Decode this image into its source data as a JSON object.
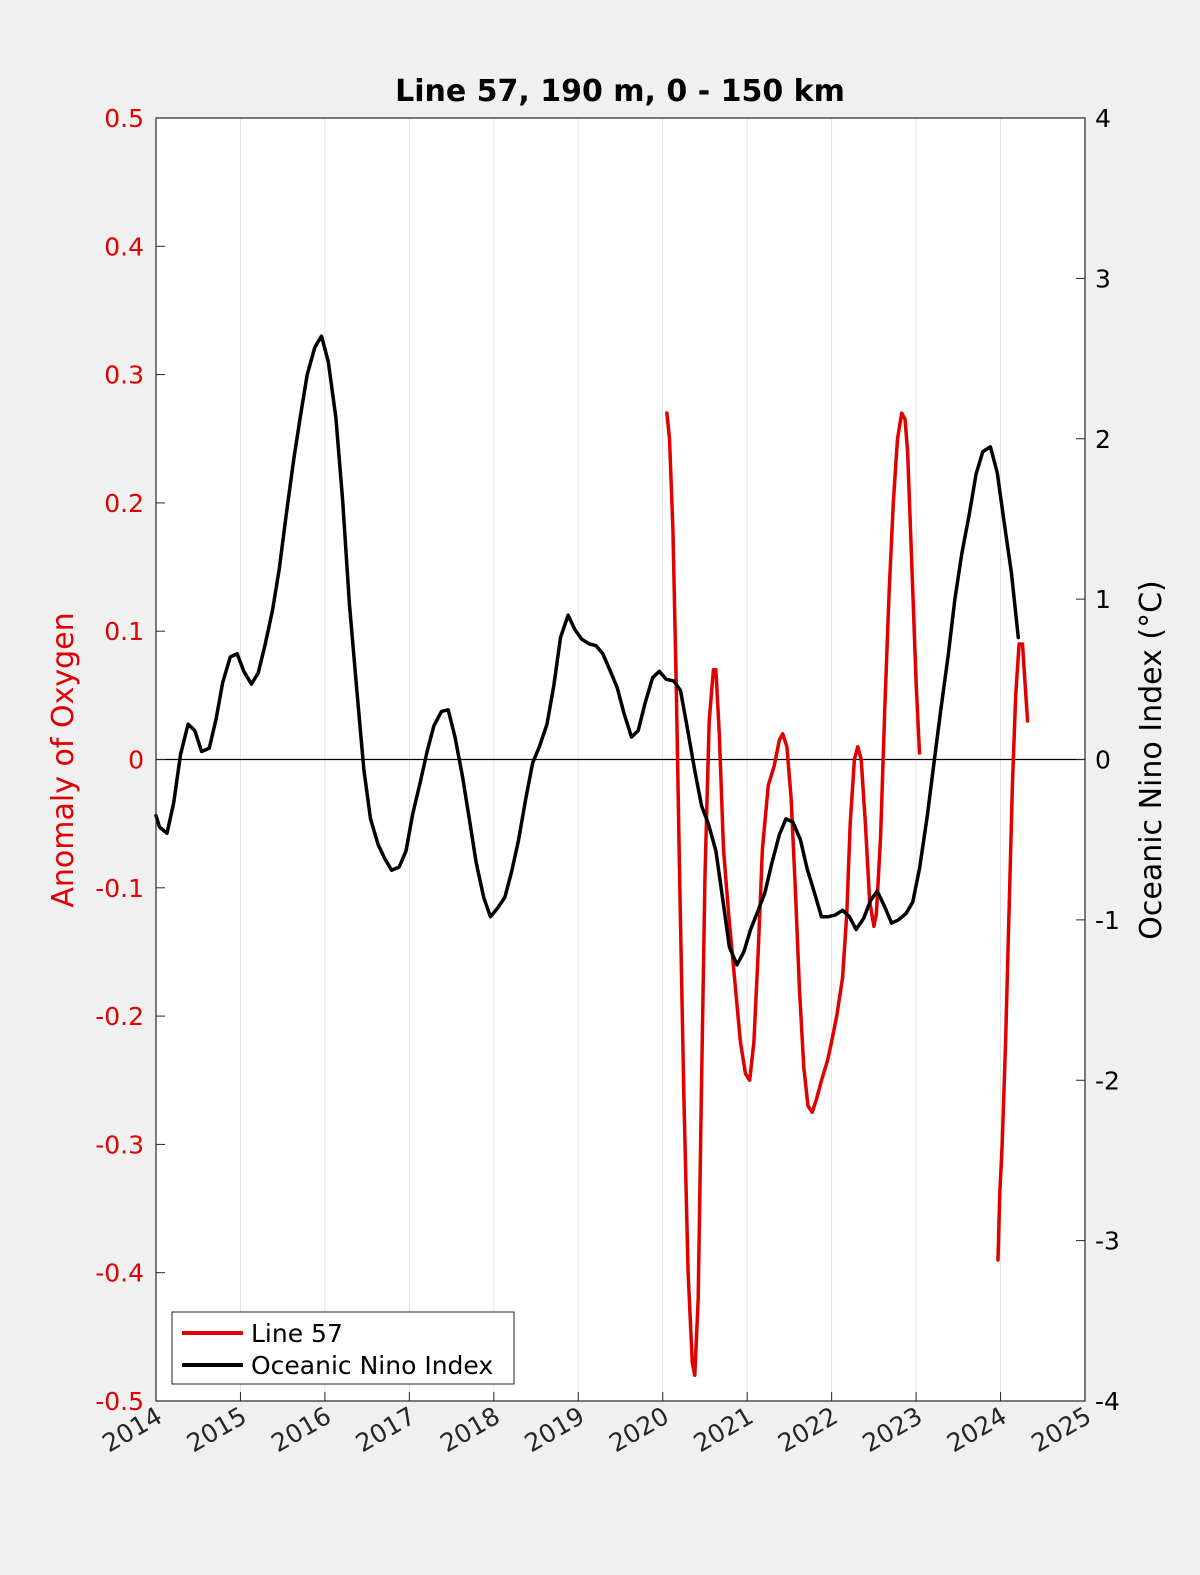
{
  "chart_data": {
    "type": "line",
    "title": "Line 57, 190 m, 0 - 150 km",
    "xlabel": "",
    "x_ticks": [
      "2014",
      "2015",
      "2016",
      "2017",
      "2018",
      "2019",
      "2020",
      "2021",
      "2022",
      "2023",
      "2024",
      "2025"
    ],
    "xlim": [
      2014,
      2025
    ],
    "y_left": {
      "label": "Anomaly of Oxygen",
      "ylim": [
        -0.5,
        0.5
      ],
      "ticks": [
        "0.5",
        "0.4",
        "0.3",
        "0.2",
        "0.1",
        "0",
        "-0.1",
        "-0.2",
        "-0.3",
        "-0.4",
        "-0.5"
      ],
      "color": "#e00000"
    },
    "y_right": {
      "label": "Oceanic Nino Index (°C)",
      "ylim": [
        -4,
        4
      ],
      "ticks": [
        "4",
        "3",
        "2",
        "1",
        "0",
        "-1",
        "-2",
        "-3",
        "-4"
      ],
      "color": "#000000"
    },
    "grid": "vertical",
    "zero_line": true,
    "legend_position": "bottom-left",
    "series": [
      {
        "name": "Line 57",
        "axis": "left",
        "color": "#e00000",
        "segments": [
          [
            [
              2020.05,
              0.27
            ],
            [
              2020.08,
              0.25
            ],
            [
              2020.12,
              0.18
            ],
            [
              2020.16,
              0.06
            ],
            [
              2020.2,
              -0.09
            ],
            [
              2020.25,
              -0.26
            ],
            [
              2020.3,
              -0.4
            ],
            [
              2020.35,
              -0.47
            ],
            [
              2020.38,
              -0.48
            ],
            [
              2020.42,
              -0.42
            ],
            [
              2020.46,
              -0.25
            ],
            [
              2020.5,
              -0.09
            ],
            [
              2020.55,
              0.03
            ],
            [
              2020.6,
              0.07
            ],
            [
              2020.63,
              0.07
            ],
            [
              2020.67,
              0.02
            ],
            [
              2020.72,
              -0.07
            ],
            [
              2020.78,
              -0.12
            ],
            [
              2020.85,
              -0.17
            ],
            [
              2020.92,
              -0.22
            ],
            [
              2020.98,
              -0.245
            ],
            [
              2021.03,
              -0.25
            ],
            [
              2021.08,
              -0.22
            ],
            [
              2021.13,
              -0.15
            ],
            [
              2021.18,
              -0.07
            ],
            [
              2021.25,
              -0.02
            ],
            [
              2021.32,
              -0.005
            ],
            [
              2021.38,
              0.015
            ],
            [
              2021.42,
              0.02
            ],
            [
              2021.47,
              0.01
            ],
            [
              2021.52,
              -0.03
            ],
            [
              2021.57,
              -0.1
            ],
            [
              2021.62,
              -0.18
            ],
            [
              2021.67,
              -0.24
            ],
            [
              2021.72,
              -0.27
            ],
            [
              2021.77,
              -0.275
            ],
            [
              2021.82,
              -0.265
            ],
            [
              2021.88,
              -0.25
            ],
            [
              2021.95,
              -0.235
            ],
            [
              2022.0,
              -0.22
            ],
            [
              2022.06,
              -0.2
            ],
            [
              2022.13,
              -0.17
            ],
            [
              2022.18,
              -0.12
            ],
            [
              2022.22,
              -0.05
            ],
            [
              2022.27,
              0.0
            ],
            [
              2022.31,
              0.01
            ],
            [
              2022.35,
              0.0
            ],
            [
              2022.4,
              -0.05
            ],
            [
              2022.45,
              -0.11
            ],
            [
              2022.5,
              -0.13
            ],
            [
              2022.53,
              -0.12
            ],
            [
              2022.58,
              -0.06
            ],
            [
              2022.63,
              0.04
            ],
            [
              2022.68,
              0.13
            ],
            [
              2022.73,
              0.2
            ],
            [
              2022.78,
              0.25
            ],
            [
              2022.83,
              0.27
            ],
            [
              2022.87,
              0.265
            ],
            [
              2022.9,
              0.24
            ],
            [
              2022.95,
              0.15
            ],
            [
              2023.0,
              0.06
            ],
            [
              2023.04,
              0.005
            ]
          ],
          [
            [
              2023.97,
              -0.39
            ],
            [
              2023.99,
              -0.34
            ],
            [
              2024.02,
              -0.3
            ],
            [
              2024.06,
              -0.22
            ],
            [
              2024.1,
              -0.12
            ],
            [
              2024.14,
              -0.02
            ],
            [
              2024.18,
              0.05
            ],
            [
              2024.22,
              0.09
            ],
            [
              2024.26,
              0.09
            ],
            [
              2024.29,
              0.06
            ],
            [
              2024.32,
              0.03
            ]
          ]
        ]
      },
      {
        "name": "Oceanic Nino Index",
        "axis": "right",
        "color": "#000000",
        "points": [
          [
            2014.0,
            -0.35
          ],
          [
            2014.04,
            -0.42
          ],
          [
            2014.13,
            -0.46
          ],
          [
            2014.21,
            -0.27
          ],
          [
            2014.29,
            0.03
          ],
          [
            2014.38,
            0.22
          ],
          [
            2014.46,
            0.18
          ],
          [
            2014.54,
            0.05
          ],
          [
            2014.63,
            0.07
          ],
          [
            2014.71,
            0.25
          ],
          [
            2014.79,
            0.48
          ],
          [
            2014.88,
            0.64
          ],
          [
            2014.96,
            0.66
          ],
          [
            2015.04,
            0.55
          ],
          [
            2015.13,
            0.47
          ],
          [
            2015.21,
            0.54
          ],
          [
            2015.29,
            0.71
          ],
          [
            2015.38,
            0.93
          ],
          [
            2015.46,
            1.19
          ],
          [
            2015.54,
            1.52
          ],
          [
            2015.63,
            1.87
          ],
          [
            2015.71,
            2.14
          ],
          [
            2015.79,
            2.4
          ],
          [
            2015.88,
            2.57
          ],
          [
            2015.96,
            2.64
          ],
          [
            2016.04,
            2.48
          ],
          [
            2016.13,
            2.13
          ],
          [
            2016.21,
            1.62
          ],
          [
            2016.29,
            0.97
          ],
          [
            2016.38,
            0.42
          ],
          [
            2016.46,
            -0.06
          ],
          [
            2016.54,
            -0.37
          ],
          [
            2016.63,
            -0.53
          ],
          [
            2016.71,
            -0.62
          ],
          [
            2016.79,
            -0.69
          ],
          [
            2016.88,
            -0.67
          ],
          [
            2016.96,
            -0.57
          ],
          [
            2017.04,
            -0.34
          ],
          [
            2017.13,
            -0.14
          ],
          [
            2017.21,
            0.05
          ],
          [
            2017.29,
            0.21
          ],
          [
            2017.38,
            0.3
          ],
          [
            2017.46,
            0.31
          ],
          [
            2017.54,
            0.14
          ],
          [
            2017.63,
            -0.11
          ],
          [
            2017.71,
            -0.37
          ],
          [
            2017.79,
            -0.64
          ],
          [
            2017.88,
            -0.86
          ],
          [
            2017.96,
            -0.98
          ],
          [
            2018.04,
            -0.93
          ],
          [
            2018.13,
            -0.86
          ],
          [
            2018.21,
            -0.7
          ],
          [
            2018.29,
            -0.51
          ],
          [
            2018.38,
            -0.24
          ],
          [
            2018.46,
            -0.02
          ],
          [
            2018.54,
            0.08
          ],
          [
            2018.63,
            0.22
          ],
          [
            2018.71,
            0.46
          ],
          [
            2018.79,
            0.76
          ],
          [
            2018.88,
            0.9
          ],
          [
            2018.96,
            0.81
          ],
          [
            2019.04,
            0.75
          ],
          [
            2019.13,
            0.72
          ],
          [
            2019.21,
            0.71
          ],
          [
            2019.29,
            0.66
          ],
          [
            2019.38,
            0.55
          ],
          [
            2019.46,
            0.45
          ],
          [
            2019.54,
            0.29
          ],
          [
            2019.63,
            0.14
          ],
          [
            2019.71,
            0.18
          ],
          [
            2019.79,
            0.35
          ],
          [
            2019.88,
            0.51
          ],
          [
            2019.96,
            0.55
          ],
          [
            2020.04,
            0.5
          ],
          [
            2020.13,
            0.49
          ],
          [
            2020.21,
            0.43
          ],
          [
            2020.29,
            0.2
          ],
          [
            2020.38,
            -0.07
          ],
          [
            2020.46,
            -0.29
          ],
          [
            2020.54,
            -0.4
          ],
          [
            2020.63,
            -0.57
          ],
          [
            2020.71,
            -0.87
          ],
          [
            2020.79,
            -1.17
          ],
          [
            2020.88,
            -1.28
          ],
          [
            2020.96,
            -1.2
          ],
          [
            2021.04,
            -1.06
          ],
          [
            2021.13,
            -0.94
          ],
          [
            2021.21,
            -0.83
          ],
          [
            2021.29,
            -0.65
          ],
          [
            2021.38,
            -0.47
          ],
          [
            2021.46,
            -0.37
          ],
          [
            2021.54,
            -0.39
          ],
          [
            2021.63,
            -0.5
          ],
          [
            2021.71,
            -0.68
          ],
          [
            2021.79,
            -0.82
          ],
          [
            2021.88,
            -0.98
          ],
          [
            2021.96,
            -0.98
          ],
          [
            2022.04,
            -0.97
          ],
          [
            2022.13,
            -0.94
          ],
          [
            2022.21,
            -0.98
          ],
          [
            2022.29,
            -1.06
          ],
          [
            2022.38,
            -0.99
          ],
          [
            2022.46,
            -0.88
          ],
          [
            2022.54,
            -0.82
          ],
          [
            2022.63,
            -0.92
          ],
          [
            2022.71,
            -1.02
          ],
          [
            2022.79,
            -1.0
          ],
          [
            2022.88,
            -0.96
          ],
          [
            2022.96,
            -0.89
          ],
          [
            2023.04,
            -0.68
          ],
          [
            2023.13,
            -0.36
          ],
          [
            2023.21,
            -0.03
          ],
          [
            2023.29,
            0.3
          ],
          [
            2023.38,
            0.65
          ],
          [
            2023.46,
            1.0
          ],
          [
            2023.54,
            1.28
          ],
          [
            2023.63,
            1.53
          ],
          [
            2023.71,
            1.78
          ],
          [
            2023.79,
            1.92
          ],
          [
            2023.88,
            1.95
          ],
          [
            2023.96,
            1.79
          ],
          [
            2024.04,
            1.49
          ],
          [
            2024.13,
            1.16
          ],
          [
            2024.21,
            0.76
          ]
        ]
      }
    ],
    "legend": [
      "Line 57",
      "Oceanic Nino Index"
    ]
  }
}
